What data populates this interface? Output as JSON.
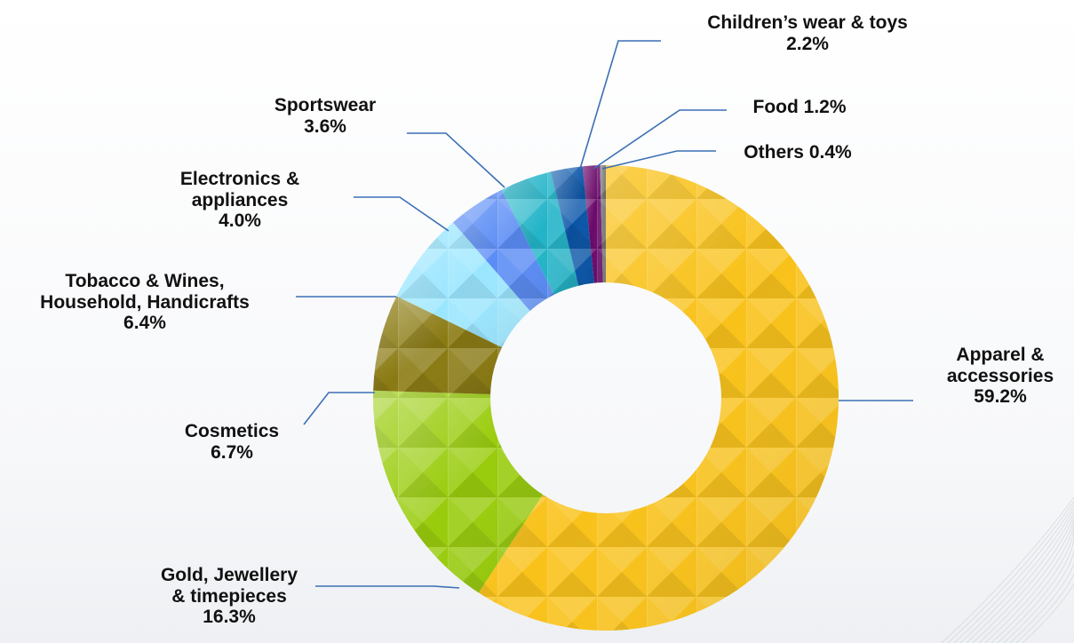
{
  "chart_data": {
    "type": "pie",
    "variant": "donut",
    "slices": [
      {
        "label": "Apparel & accessories",
        "label_lines": [
          "Apparel &",
          "accessories"
        ],
        "value_text": "59.2%",
        "value": 59.2,
        "color": "#f9c21a"
      },
      {
        "label": "Gold, Jewellery & timepieces",
        "label_lines": [
          "Gold, Jewellery",
          "& timepieces"
        ],
        "value_text": "16.3%",
        "value": 16.3,
        "color": "#99cc0c"
      },
      {
        "label": "Cosmetics",
        "label_lines": [
          "Cosmetics"
        ],
        "value_text": "6.7%",
        "value": 6.7,
        "color": "#8a7a12"
      },
      {
        "label": "Tobacco & Wines, Household, Handicrafts",
        "label_lines": [
          "Tobacco & Wines,",
          "Household, Handicrafts"
        ],
        "value_text": "6.4%",
        "value": 6.4,
        "color": "#9be6ff"
      },
      {
        "label": "Electronics & appliances",
        "label_lines": [
          "Electronics &",
          "appliances"
        ],
        "value_text": "4.0%",
        "value": 4.0,
        "color": "#5a8cf5"
      },
      {
        "label": "Sportswear",
        "label_lines": [
          "Sportswear"
        ],
        "value_text": "3.6%",
        "value": 3.6,
        "color": "#22b4c8"
      },
      {
        "label": "Children’s wear & toys",
        "label_lines": [
          "Children’s wear & toys"
        ],
        "value_text": "2.2%",
        "value": 2.2,
        "color": "#0a55a8"
      },
      {
        "label": "Food",
        "label_lines": [],
        "value_text": "Food 1.2%",
        "value": 1.2,
        "color": "#6a0a6a"
      },
      {
        "label": "Others",
        "label_lines": [],
        "value_text": "Others 0.4%",
        "value": 0.4,
        "color": "#707070"
      }
    ],
    "start_angle_deg": 0,
    "direction": "clockwise",
    "legend": "none",
    "line_color": "#3a6fb5"
  }
}
